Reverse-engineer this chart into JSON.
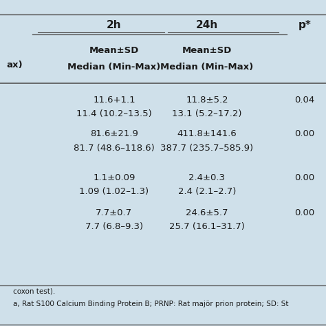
{
  "background_color": "#cfe0ea",
  "text_color": "#1a1a1a",
  "col_headers": [
    "2h",
    "24h",
    "p*"
  ],
  "rows": [
    [
      "11.6+1.1",
      "11.8±5.2",
      "0.04"
    ],
    [
      "11.4 (10.2–13.5)",
      "13.1 (5.2–17.2)",
      ""
    ],
    [
      "81.6±21.9",
      "411.8±141.6",
      "0.00"
    ],
    [
      "81.7 (48.6–118.6)",
      "387.7 (235.7–585.9)",
      ""
    ],
    [
      "",
      "",
      ""
    ],
    [
      "1.1±0.09",
      "2.4±0.3",
      "0.00"
    ],
    [
      "1.09 (1.02–1.3)",
      "2.4 (2.1–2.7)",
      ""
    ],
    [
      "7.7±0.7",
      "24.6±5.7",
      "0.00"
    ],
    [
      "7.7 (6.8–9.3)",
      "25.7 (16.1–31.7)",
      ""
    ]
  ],
  "footer_lines": [
    "coxon test).",
    "a, Rat S100 Calcium Binding Protein B; PRNP: Rat majör prion protein; SD: St"
  ],
  "figsize": [
    4.74,
    4.74
  ],
  "dpi": 100
}
